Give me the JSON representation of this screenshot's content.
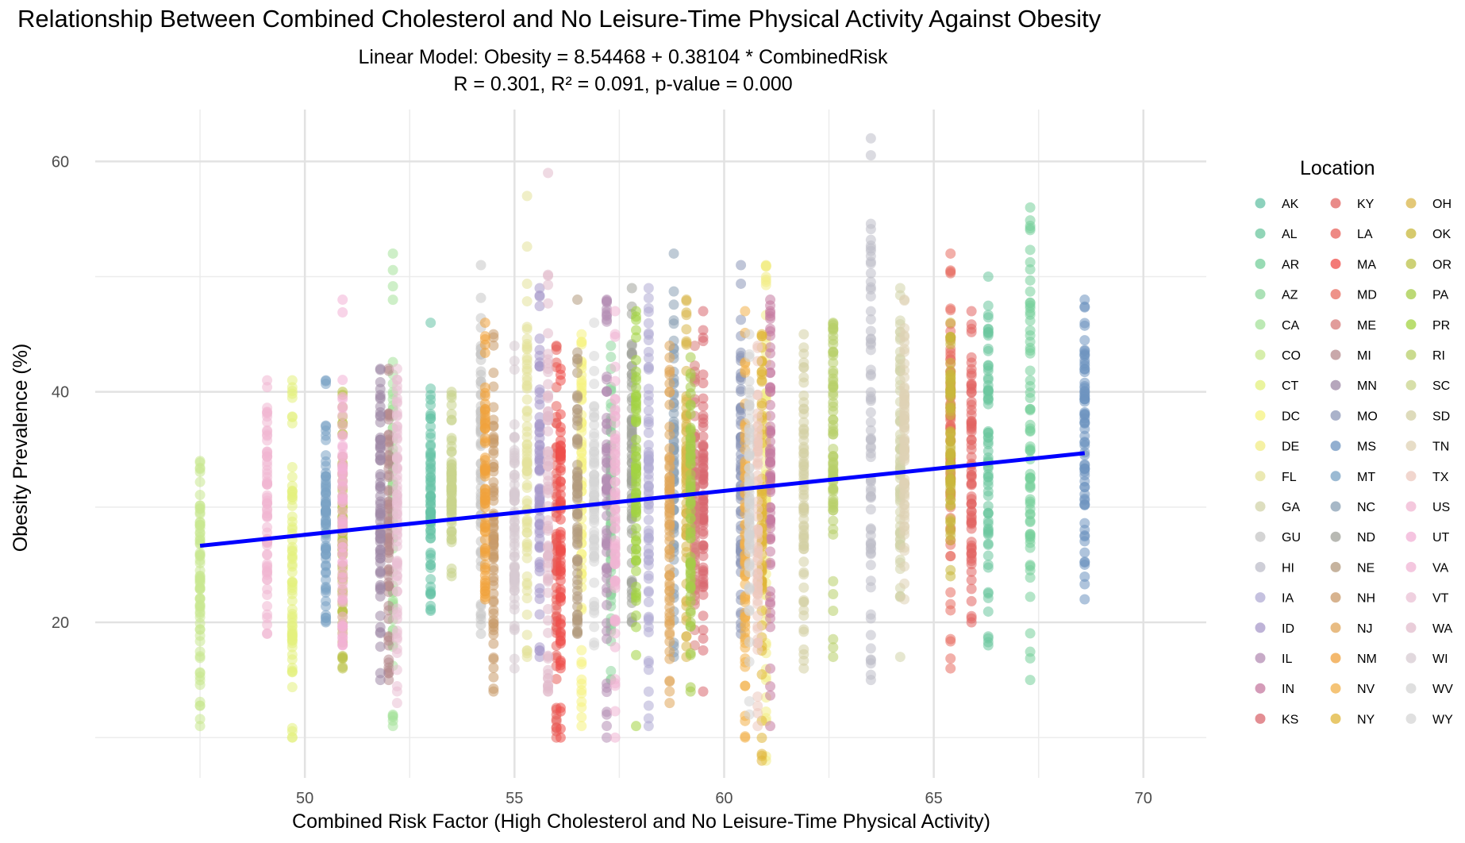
{
  "chart_data": {
    "type": "scatter",
    "title": "Relationship Between Combined Cholesterol and No Leisure-Time Physical Activity Against Obesity",
    "subtitle_line1": "Linear Model: Obesity = 8.54468 + 0.38104 * CombinedRisk",
    "subtitle_line2": "R = 0.301, R² = 0.091, p-value = 0.000",
    "xlabel": "Combined Risk Factor (High Cholesterol and No Leisure-Time Physical Activity)",
    "ylabel": "Obesity Prevalence (%)",
    "xlim": [
      45,
      71.5
    ],
    "ylim": [
      6.5,
      64.5
    ],
    "xticks": [
      50,
      55,
      60,
      65,
      70
    ],
    "yticks": [
      20,
      40,
      60
    ],
    "grid": true,
    "legend": {
      "title": "Location",
      "placement": "right",
      "columns": 3
    },
    "regression": {
      "intercept": 8.54468,
      "slope": 0.38104,
      "x_range": [
        47.5,
        68.6
      ],
      "color": "#0000ff"
    },
    "point_opacity": 0.55,
    "series": [
      {
        "name": "AK",
        "color": "#66c2a5",
        "x": 53.0,
        "ymin": 21,
        "ymax": 46,
        "mean": 32
      },
      {
        "name": "AL",
        "color": "#6cc79f",
        "x": 66.3,
        "ymin": 18,
        "ymax": 50,
        "mean": 34
      },
      {
        "name": "AR",
        "color": "#76cf9b",
        "x": 67.3,
        "ymin": 15,
        "ymax": 56,
        "mean": 36
      },
      {
        "name": "AZ",
        "color": "#8fd79e",
        "x": 57.3,
        "ymin": 15,
        "ymax": 44,
        "mean": 30
      },
      {
        "name": "CA",
        "color": "#a6e29b",
        "x": 52.1,
        "ymin": 11,
        "ymax": 52,
        "mean": 30
      },
      {
        "name": "CO",
        "color": "#c8e88f",
        "x": 47.5,
        "ymin": 11,
        "ymax": 34,
        "mean": 24
      },
      {
        "name": "CT",
        "color": "#e3f07e",
        "x": 49.7,
        "ymin": 10,
        "ymax": 41,
        "mean": 25
      },
      {
        "name": "DC",
        "color": "#f6f380",
        "x": 56.6,
        "ymin": 11,
        "ymax": 45,
        "mean": 30
      },
      {
        "name": "DE",
        "color": "#f2ec86",
        "x": 61.0,
        "ymin": 8,
        "ymax": 51,
        "mean": 30
      },
      {
        "name": "FL",
        "color": "#e4e29a",
        "x": 55.3,
        "ymin": 17,
        "ymax": 57,
        "mean": 34
      },
      {
        "name": "GA",
        "color": "#d2d3a9",
        "x": 64.2,
        "ymin": 17,
        "ymax": 49,
        "mean": 34
      },
      {
        "name": "GU",
        "color": "#c6c6c6",
        "x": 54.2,
        "ymin": 19,
        "ymax": 51,
        "mean": 32
      },
      {
        "name": "HI",
        "color": "#bdbdc9",
        "x": 63.5,
        "ymin": 15,
        "ymax": 62,
        "mean": 38
      },
      {
        "name": "IA",
        "color": "#b1acd4",
        "x": 58.2,
        "ymin": 11,
        "ymax": 49,
        "mean": 33
      },
      {
        "name": "ID",
        "color": "#a899ca",
        "x": 55.6,
        "ymin": 17,
        "ymax": 49,
        "mean": 31
      },
      {
        "name": "IL",
        "color": "#b48eb4",
        "x": 57.2,
        "ymin": 10,
        "ymax": 48,
        "mean": 30
      },
      {
        "name": "IN",
        "color": "#c57aa0",
        "x": 61.1,
        "ymin": 11,
        "ymax": 48,
        "mean": 32
      },
      {
        "name": "KS",
        "color": "#d9686f",
        "x": 59.5,
        "ymin": 14,
        "ymax": 47,
        "mean": 31
      },
      {
        "name": "KY",
        "color": "#e26462",
        "x": 65.9,
        "ymin": 20,
        "ymax": 47,
        "mean": 34
      },
      {
        "name": "LA",
        "color": "#e8615b",
        "x": 56.0,
        "ymin": 10,
        "ymax": 44,
        "mean": 27
      },
      {
        "name": "MA",
        "color": "#ef4e4a",
        "x": 56.1,
        "ymin": 10,
        "ymax": 42,
        "mean": 27
      },
      {
        "name": "MD",
        "color": "#e86e62",
        "x": 65.4,
        "ymin": 16,
        "ymax": 52,
        "mean": 34
      },
      {
        "name": "ME",
        "color": "#d77b79",
        "x": 59.3,
        "ymin": 18,
        "ymax": 44,
        "mean": 31
      },
      {
        "name": "MI",
        "color": "#b78b8e",
        "x": 52.0,
        "ymin": 15,
        "ymax": 42,
        "mean": 29
      },
      {
        "name": "MN",
        "color": "#9e88a6",
        "x": 51.8,
        "ymin": 15,
        "ymax": 42,
        "mean": 29
      },
      {
        "name": "MO",
        "color": "#8d98b8",
        "x": 60.4,
        "ymin": 19,
        "ymax": 51,
        "mean": 33
      },
      {
        "name": "MS",
        "color": "#6e94c0",
        "x": 68.6,
        "ymin": 22,
        "ymax": 48,
        "mean": 37
      },
      {
        "name": "MT",
        "color": "#7aa3c4",
        "x": 50.5,
        "ymin": 20,
        "ymax": 41,
        "mean": 29
      },
      {
        "name": "NC",
        "color": "#8aa0b4",
        "x": 58.8,
        "ymin": 17,
        "ymax": 52,
        "mean": 32
      },
      {
        "name": "ND",
        "color": "#a0a29a",
        "x": 57.8,
        "ymin": 20,
        "ymax": 49,
        "mean": 33
      },
      {
        "name": "NE",
        "color": "#b39a7d",
        "x": 56.5,
        "ymin": 19,
        "ymax": 48,
        "mean": 31
      },
      {
        "name": "NH",
        "color": "#c99a6a",
        "x": 54.5,
        "ymin": 14,
        "ymax": 45,
        "mean": 29
      },
      {
        "name": "NJ",
        "color": "#e0a55a",
        "x": 58.7,
        "ymin": 13,
        "ymax": 44,
        "mean": 28
      },
      {
        "name": "NM",
        "color": "#f0a23d",
        "x": 54.3,
        "ymin": 22,
        "ymax": 46,
        "mean": 32
      },
      {
        "name": "NV",
        "color": "#f2b04a",
        "x": 60.5,
        "ymin": 10,
        "ymax": 47,
        "mean": 27
      },
      {
        "name": "NY",
        "color": "#e0b63a",
        "x": 60.9,
        "ymin": 8,
        "ymax": 45,
        "mean": 28
      },
      {
        "name": "OH",
        "color": "#d9b64a",
        "x": 59.1,
        "ymin": 17,
        "ymax": 48,
        "mean": 32
      },
      {
        "name": "OK",
        "color": "#c8b83c",
        "x": 65.4,
        "ymin": 24,
        "ymax": 46,
        "mean": 35
      },
      {
        "name": "OR",
        "color": "#bcc24a",
        "x": 50.9,
        "ymin": 16,
        "ymax": 40,
        "mean": 28
      },
      {
        "name": "PA",
        "color": "#a6cc48",
        "x": 59.2,
        "ymin": 14,
        "ymax": 43,
        "mean": 30
      },
      {
        "name": "PR",
        "color": "#a3d341",
        "x": 57.9,
        "ymin": 11,
        "ymax": 47,
        "mean": 32
      },
      {
        "name": "RI",
        "color": "#b8cf6a",
        "x": 62.6,
        "ymin": 17,
        "ymax": 46,
        "mean": 33
      },
      {
        "name": "SC",
        "color": "#c9d48c",
        "x": 53.5,
        "ymin": 24,
        "ymax": 40,
        "mean": 31
      },
      {
        "name": "SD",
        "color": "#d3cfa4",
        "x": 61.9,
        "ymin": 16,
        "ymax": 45,
        "mean": 31
      },
      {
        "name": "TN",
        "color": "#dfd1b4",
        "x": 64.3,
        "ymin": 22,
        "ymax": 48,
        "mean": 35
      },
      {
        "name": "TX",
        "color": "#ecc8be",
        "x": 60.8,
        "ymin": 11,
        "ymax": 44,
        "mean": 28
      },
      {
        "name": "US",
        "color": "#f0b6d2",
        "x": 49.1,
        "ymin": 19,
        "ymax": 41,
        "mean": 29
      },
      {
        "name": "UT",
        "color": "#f2b0d6",
        "x": 50.9,
        "ymin": 18,
        "ymax": 48,
        "mean": 29
      },
      {
        "name": "VA",
        "color": "#f0b4d4",
        "x": 57.4,
        "ymin": 10,
        "ymax": 47,
        "mean": 30
      },
      {
        "name": "VT",
        "color": "#e9c0d4",
        "x": 52.2,
        "ymin": 13,
        "ymax": 42,
        "mean": 29
      },
      {
        "name": "WA",
        "color": "#e1bccc",
        "x": 55.8,
        "ymin": 14,
        "ymax": 59,
        "mean": 31
      },
      {
        "name": "WI",
        "color": "#d7cbd2",
        "x": 55.0,
        "ymin": 16,
        "ymax": 44,
        "mean": 30
      },
      {
        "name": "WV",
        "color": "#d4d4d4",
        "x": 60.6,
        "ymin": 12,
        "ymax": 45,
        "mean": 30
      },
      {
        "name": "WY",
        "color": "#d6d6d6",
        "x": 56.9,
        "ymin": 18,
        "ymax": 46,
        "mean": 31
      }
    ]
  }
}
